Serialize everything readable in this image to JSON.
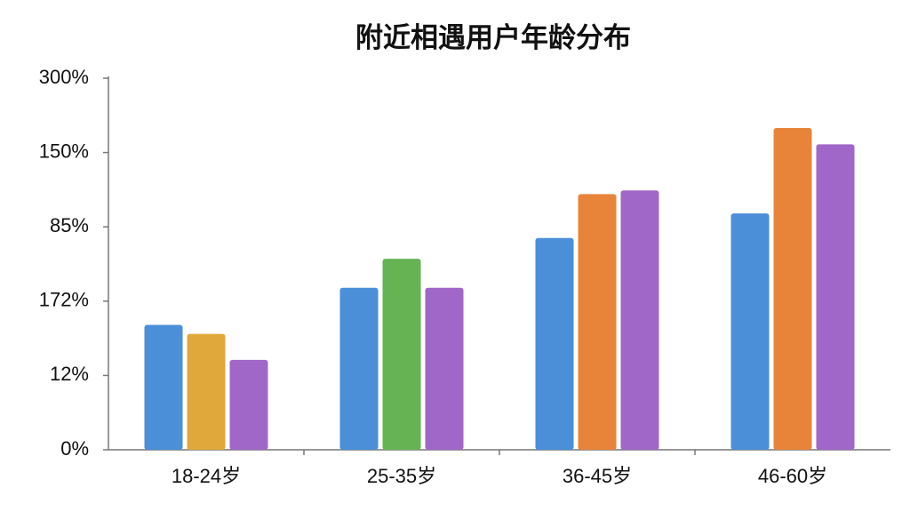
{
  "chart_data": {
    "type": "bar",
    "title": "附近相遇用户年龄分布",
    "categories": [
      "18-24岁",
      "25-35岁",
      "36-45岁",
      "46-60岁"
    ],
    "series": [
      {
        "color": "#4a8fd8",
        "values": [
          1.68,
          2.18,
          2.85,
          3.18
        ]
      },
      {
        "colors": [
          "#e0a83a",
          "#66b354",
          "#e8843a",
          "#e8843a"
        ],
        "values": [
          1.56,
          2.57,
          3.44,
          4.33
        ]
      },
      {
        "color": "#a066c8",
        "values": [
          1.21,
          2.18,
          3.49,
          4.11
        ]
      }
    ],
    "ylim": [
      0,
      5
    ],
    "yticks": [
      {
        "value": 0,
        "label": "0%"
      },
      {
        "value": 1,
        "label": "12%"
      },
      {
        "value": 2,
        "label": "172%"
      },
      {
        "value": 3,
        "label": "85%"
      },
      {
        "value": 4,
        "label": "150%"
      },
      {
        "value": 5,
        "label": "300%"
      }
    ]
  }
}
